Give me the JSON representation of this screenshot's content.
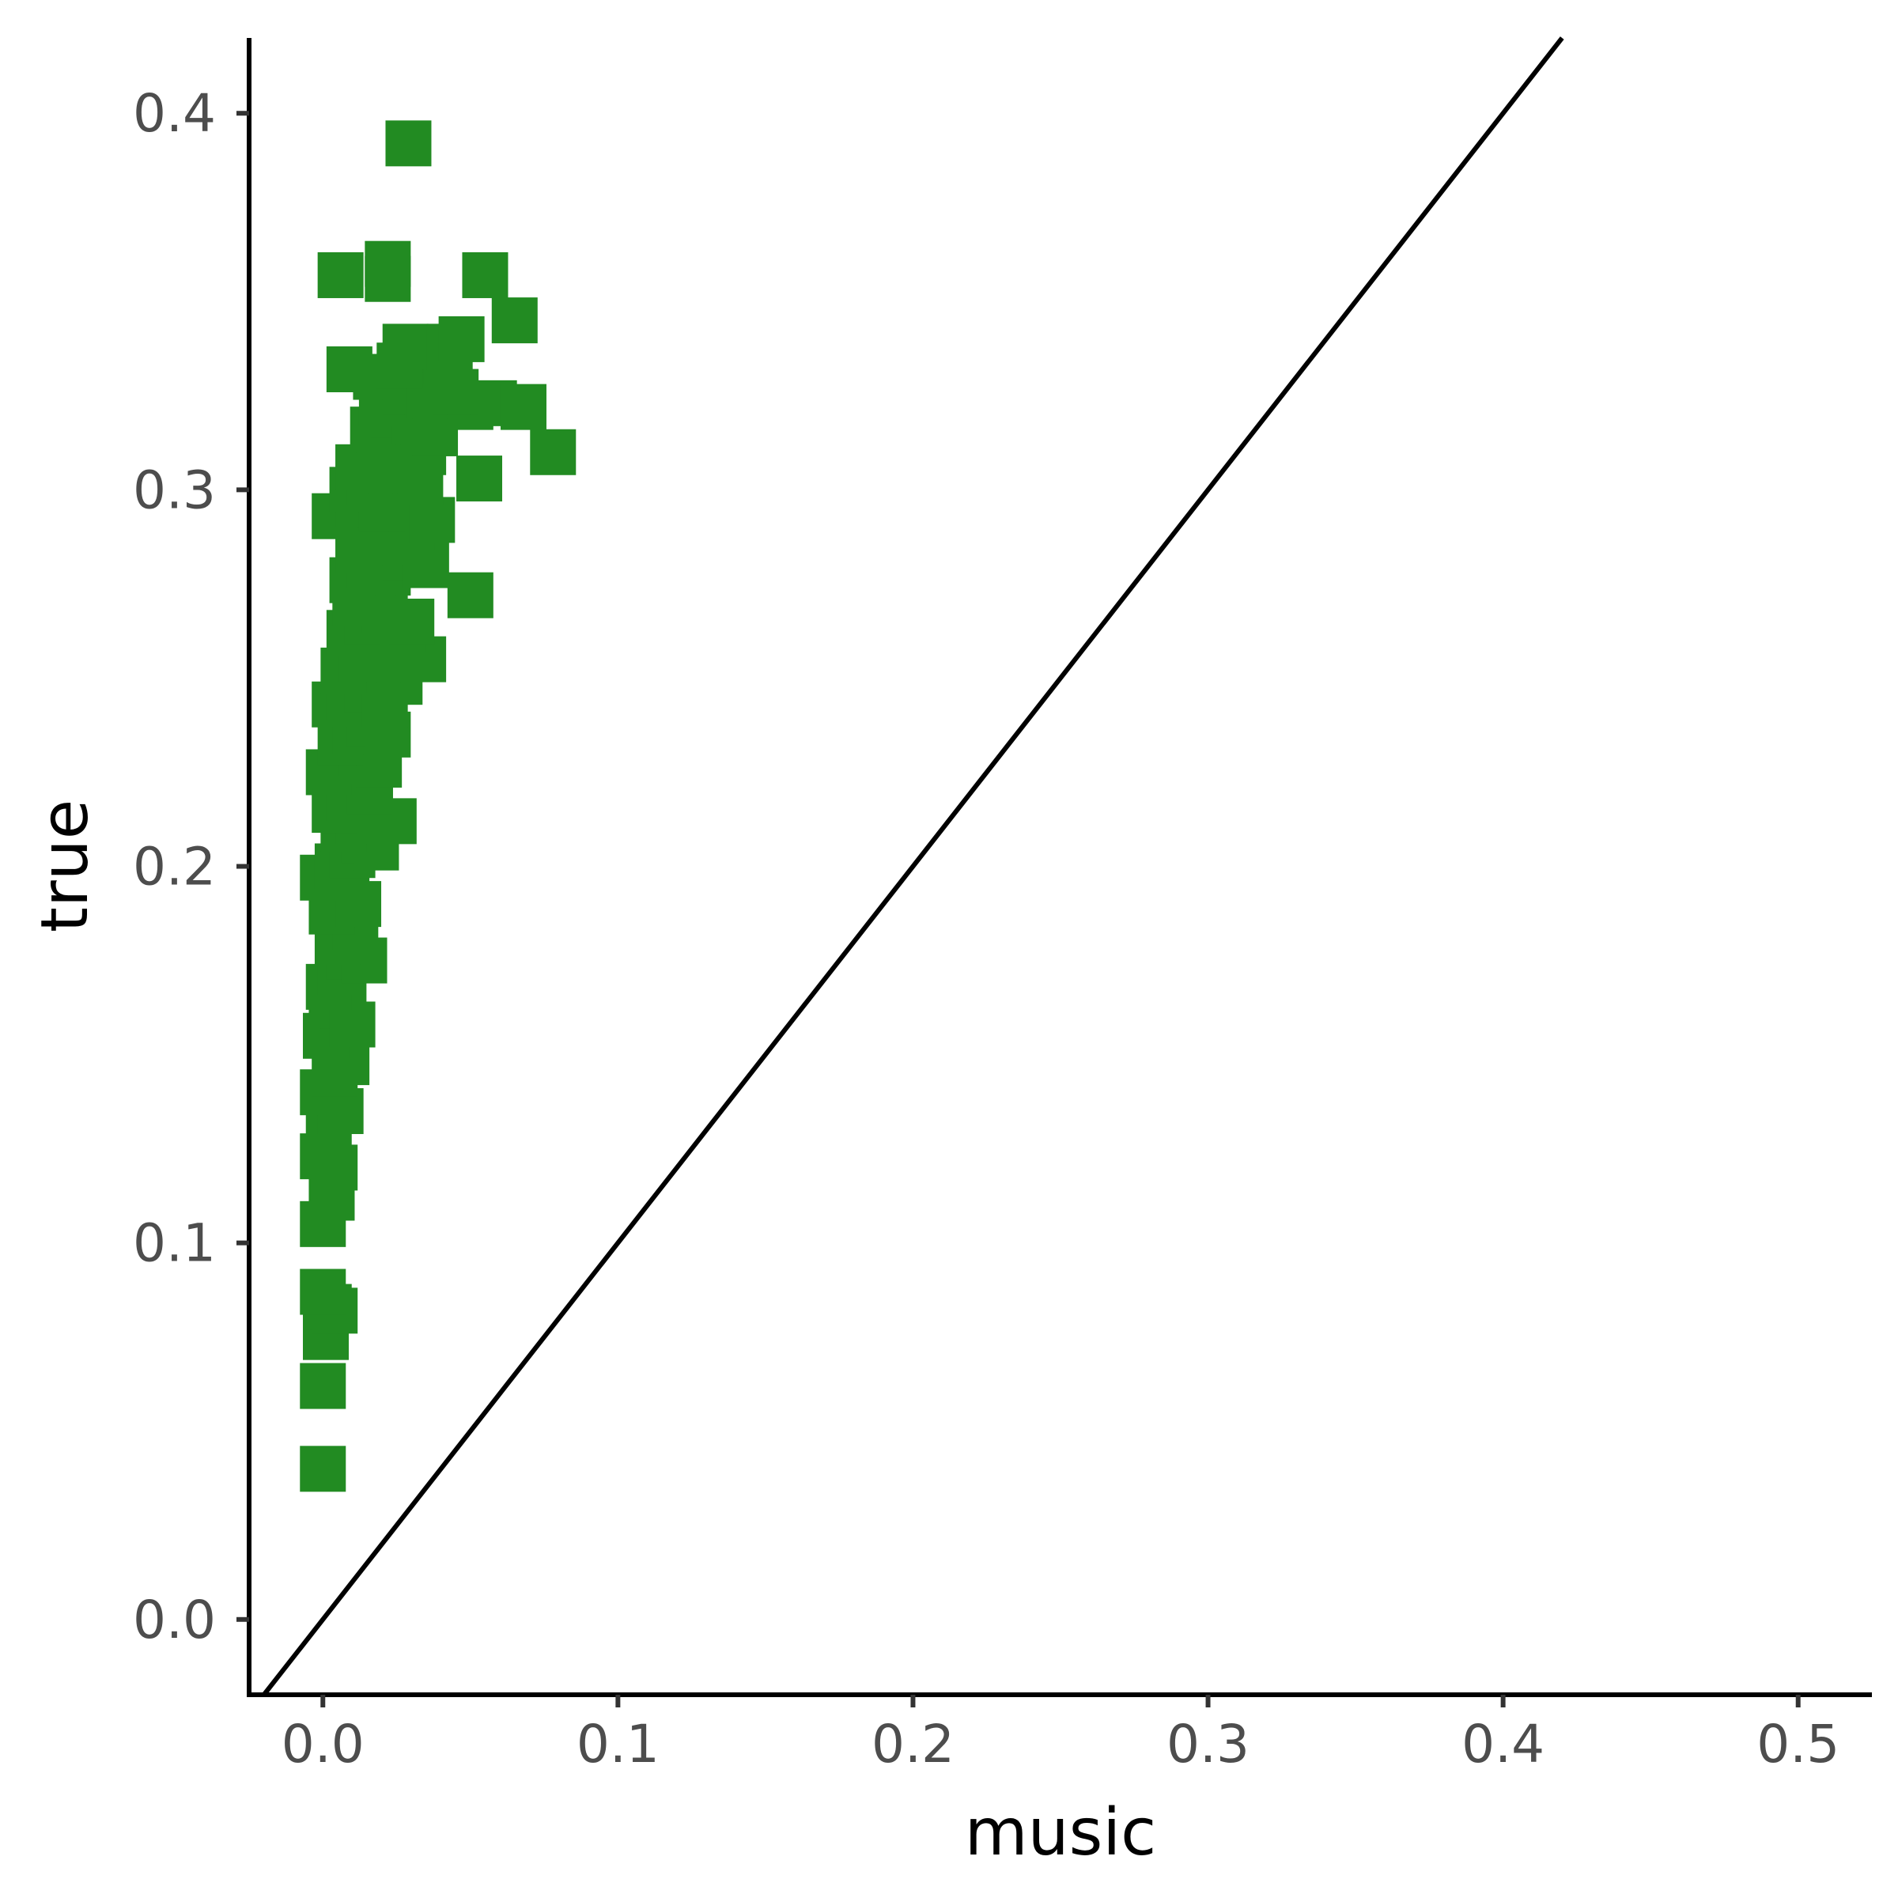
{
  "chart_data": {
    "type": "scatter",
    "title": "",
    "xlabel": "music",
    "ylabel": "true",
    "xlim": [
      -0.025,
      0.525
    ],
    "ylim": [
      -0.02,
      0.42
    ],
    "x_ticks": [
      0.0,
      0.1,
      0.2,
      0.3,
      0.4,
      0.5
    ],
    "x_tick_labels": [
      "0.0",
      "0.1",
      "0.2",
      "0.3",
      "0.4",
      "0.5"
    ],
    "y_ticks": [
      0.0,
      0.1,
      0.2,
      0.3,
      0.4
    ],
    "y_tick_labels": [
      "0.0",
      "0.1",
      "0.2",
      "0.3",
      "0.4"
    ],
    "grid": false,
    "legend": "none",
    "reference_line": {
      "type": "identity",
      "slope": 1,
      "intercept": 0,
      "color": "#000000"
    },
    "series": [
      {
        "name": "points",
        "marker": "square",
        "color": "#228b22",
        "points": [
          [
            0.0,
            0.04
          ],
          [
            0.0,
            0.062
          ],
          [
            0.001,
            0.075
          ],
          [
            0.002,
            0.083
          ],
          [
            0.004,
            0.082
          ],
          [
            0.0,
            0.087
          ],
          [
            0.0,
            0.105
          ],
          [
            0.003,
            0.112
          ],
          [
            0.004,
            0.12
          ],
          [
            0.0,
            0.123
          ],
          [
            0.002,
            0.13
          ],
          [
            0.006,
            0.135
          ],
          [
            0.0,
            0.14
          ],
          [
            0.004,
            0.145
          ],
          [
            0.008,
            0.148
          ],
          [
            0.001,
            0.155
          ],
          [
            0.003,
            0.16
          ],
          [
            0.007,
            0.163
          ],
          [
            0.01,
            0.158
          ],
          [
            0.002,
            0.168
          ],
          [
            0.006,
            0.172
          ],
          [
            0.009,
            0.176
          ],
          [
            0.014,
            0.175
          ],
          [
            0.005,
            0.18
          ],
          [
            0.011,
            0.184
          ],
          [
            0.003,
            0.188
          ],
          [
            0.008,
            0.192
          ],
          [
            0.012,
            0.19
          ],
          [
            0.0,
            0.197
          ],
          [
            0.005,
            0.2
          ],
          [
            0.01,
            0.203
          ],
          [
            0.014,
            0.207
          ],
          [
            0.018,
            0.205
          ],
          [
            0.007,
            0.21
          ],
          [
            0.012,
            0.212
          ],
          [
            0.024,
            0.212
          ],
          [
            0.004,
            0.215
          ],
          [
            0.009,
            0.218
          ],
          [
            0.016,
            0.22
          ],
          [
            0.002,
            0.225
          ],
          [
            0.008,
            0.228
          ],
          [
            0.013,
            0.23
          ],
          [
            0.019,
            0.227
          ],
          [
            0.006,
            0.233
          ],
          [
            0.011,
            0.236
          ],
          [
            0.016,
            0.238
          ],
          [
            0.022,
            0.235
          ],
          [
            0.004,
            0.243
          ],
          [
            0.009,
            0.245
          ],
          [
            0.015,
            0.247
          ],
          [
            0.021,
            0.243
          ],
          [
            0.026,
            0.249
          ],
          [
            0.007,
            0.252
          ],
          [
            0.013,
            0.255
          ],
          [
            0.018,
            0.258
          ],
          [
            0.024,
            0.26
          ],
          [
            0.034,
            0.255
          ],
          [
            0.009,
            0.262
          ],
          [
            0.015,
            0.265
          ],
          [
            0.021,
            0.268
          ],
          [
            0.027,
            0.263
          ],
          [
            0.011,
            0.27
          ],
          [
            0.017,
            0.273
          ],
          [
            0.03,
            0.265
          ],
          [
            0.01,
            0.276
          ],
          [
            0.016,
            0.28
          ],
          [
            0.022,
            0.278
          ],
          [
            0.028,
            0.282
          ],
          [
            0.035,
            0.28
          ],
          [
            0.05,
            0.272
          ],
          [
            0.012,
            0.284
          ],
          [
            0.018,
            0.287
          ],
          [
            0.025,
            0.286
          ],
          [
            0.03,
            0.29
          ],
          [
            0.004,
            0.293
          ],
          [
            0.012,
            0.296
          ],
          [
            0.02,
            0.295
          ],
          [
            0.027,
            0.298
          ],
          [
            0.037,
            0.292
          ],
          [
            0.01,
            0.3
          ],
          [
            0.016,
            0.302
          ],
          [
            0.023,
            0.305
          ],
          [
            0.033,
            0.302
          ],
          [
            0.053,
            0.303
          ],
          [
            0.012,
            0.306
          ],
          [
            0.019,
            0.31
          ],
          [
            0.027,
            0.313
          ],
          [
            0.034,
            0.31
          ],
          [
            0.078,
            0.31
          ],
          [
            0.017,
            0.316
          ],
          [
            0.024,
            0.32
          ],
          [
            0.031,
            0.318
          ],
          [
            0.038,
            0.315
          ],
          [
            0.02,
            0.323
          ],
          [
            0.028,
            0.326
          ],
          [
            0.036,
            0.325
          ],
          [
            0.05,
            0.322
          ],
          [
            0.058,
            0.323
          ],
          [
            0.068,
            0.322
          ],
          [
            0.045,
            0.326
          ],
          [
            0.009,
            0.332
          ],
          [
            0.018,
            0.33
          ],
          [
            0.026,
            0.333
          ],
          [
            0.042,
            0.334
          ],
          [
            0.028,
            0.338
          ],
          [
            0.043,
            0.338
          ],
          [
            0.047,
            0.34
          ],
          [
            0.065,
            0.345
          ],
          [
            0.006,
            0.357
          ],
          [
            0.022,
            0.356
          ],
          [
            0.022,
            0.36
          ],
          [
            0.055,
            0.357
          ],
          [
            0.029,
            0.392
          ]
        ]
      }
    ]
  }
}
